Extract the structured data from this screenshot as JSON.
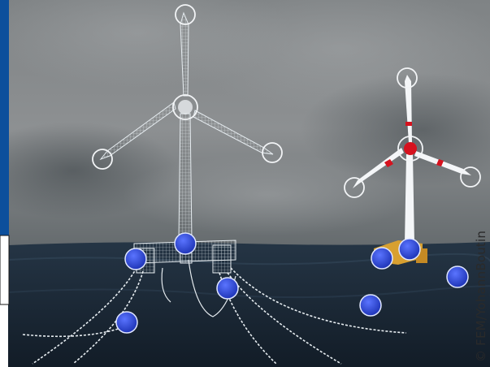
{
  "image": {
    "credit": "© FEM/YohannBoutin",
    "colors": {
      "sky_top": "#8a8d8f",
      "sky_mid": "#5d6265",
      "sea": "#1c2a38",
      "wire": "#e8ecef",
      "accent_blue": "#0c4f9c",
      "marker_fill": "#2f49d6",
      "rotor_red": "#d6121e",
      "float_yellow": "#d8a030"
    },
    "icons": [
      "turbine-wireframe",
      "turbine-solid",
      "blue-marker",
      "white-ring-marker"
    ]
  }
}
